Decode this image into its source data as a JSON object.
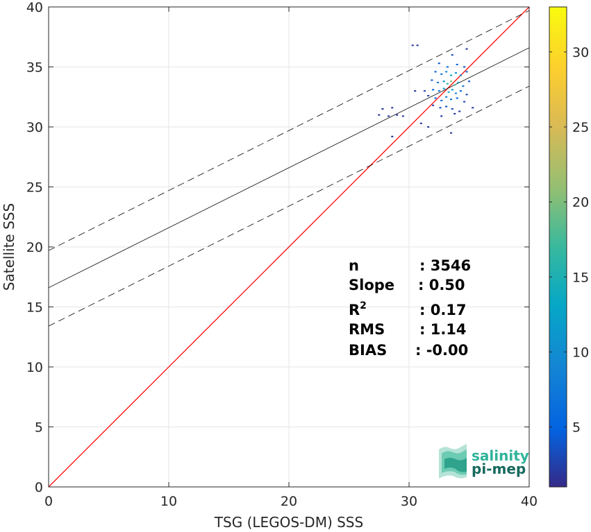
{
  "chart_data": {
    "type": "scatter",
    "xlabel": "TSG (LEGOS-DM) SSS",
    "ylabel": "Satellite SSS",
    "xlim": [
      0,
      40
    ],
    "ylim": [
      0,
      40
    ],
    "xticks": [
      0,
      10,
      20,
      30,
      40
    ],
    "yticks": [
      0,
      5,
      10,
      15,
      20,
      25,
      30,
      35,
      40
    ],
    "grid": true,
    "colorbar": {
      "lim": [
        1,
        33
      ],
      "ticks": [
        5,
        10,
        15,
        20,
        25,
        30
      ],
      "colormap": "parula"
    },
    "lines": {
      "identity": {
        "from": [
          0,
          0
        ],
        "to": [
          40,
          40
        ],
        "color": "#ff0000"
      },
      "fit": {
        "intercept": 16.6,
        "slope": 0.5,
        "color": "#000000"
      },
      "fit_upper": {
        "intercept": 19.7,
        "slope": 0.5,
        "color": "#000000",
        "style": "dashed"
      },
      "fit_lower": {
        "intercept": 13.4,
        "slope": 0.5,
        "color": "#000000",
        "style": "dashed"
      }
    },
    "density_points": [
      [
        30.3,
        36.8,
        2
      ],
      [
        30.7,
        36.8,
        2
      ],
      [
        33.6,
        36.0,
        3
      ],
      [
        34.8,
        36.5,
        2
      ],
      [
        32.5,
        35.3,
        4
      ],
      [
        33.2,
        35.0,
        6
      ],
      [
        34.0,
        35.2,
        5
      ],
      [
        34.6,
        35.0,
        4
      ],
      [
        32.2,
        34.6,
        5
      ],
      [
        32.7,
        34.4,
        7
      ],
      [
        33.1,
        34.6,
        9
      ],
      [
        33.5,
        34.3,
        14
      ],
      [
        33.9,
        34.5,
        10
      ],
      [
        34.3,
        34.3,
        8
      ],
      [
        34.8,
        34.6,
        5
      ],
      [
        31.9,
        33.9,
        4
      ],
      [
        32.4,
        33.7,
        7
      ],
      [
        32.9,
        33.8,
        11
      ],
      [
        33.2,
        33.6,
        16
      ],
      [
        33.5,
        33.8,
        20
      ],
      [
        33.8,
        33.5,
        17
      ],
      [
        34.1,
        33.7,
        12
      ],
      [
        34.5,
        33.4,
        7
      ],
      [
        35.0,
        33.8,
        4
      ],
      [
        32.0,
        33.1,
        5
      ],
      [
        32.5,
        33.0,
        8
      ],
      [
        32.9,
        33.2,
        12
      ],
      [
        33.3,
        32.9,
        14
      ],
      [
        33.6,
        33.1,
        12
      ],
      [
        33.9,
        32.8,
        9
      ],
      [
        34.3,
        33.0,
        6
      ],
      [
        34.8,
        32.7,
        3
      ],
      [
        30.5,
        33.0,
        2
      ],
      [
        31.3,
        33.0,
        3
      ],
      [
        31.6,
        32.6,
        2
      ],
      [
        32.2,
        32.4,
        5
      ],
      [
        32.7,
        32.2,
        6
      ],
      [
        33.1,
        32.5,
        8
      ],
      [
        33.5,
        32.3,
        7
      ],
      [
        34.0,
        32.4,
        5
      ],
      [
        34.6,
        32.1,
        3
      ],
      [
        32.0,
        31.8,
        3
      ],
      [
        32.6,
        31.6,
        4
      ],
      [
        33.1,
        31.7,
        4
      ],
      [
        33.6,
        31.5,
        3
      ],
      [
        35.3,
        31.6,
        2
      ],
      [
        34.2,
        31.3,
        2
      ],
      [
        27.8,
        31.5,
        2
      ],
      [
        28.6,
        31.6,
        2
      ],
      [
        27.5,
        31.0,
        2
      ],
      [
        28.3,
        30.9,
        2
      ],
      [
        29.0,
        31.0,
        2
      ],
      [
        29.5,
        30.9,
        2
      ],
      [
        32.7,
        30.9,
        2
      ],
      [
        33.8,
        31.1,
        2
      ],
      [
        31.0,
        30.3,
        2
      ],
      [
        31.6,
        30.0,
        2
      ],
      [
        33.5,
        29.5,
        2
      ],
      [
        28.6,
        29.2,
        2
      ]
    ],
    "stats": [
      {
        "label": "n",
        "value": ": 3546"
      },
      {
        "label": "Slope",
        "value": ": 0.50"
      },
      {
        "label": "R",
        "sup": "2",
        "value": ": 0.17"
      },
      {
        "label": "RMS",
        "value": ": 1.14"
      },
      {
        "label": "BIAS",
        "value": ": -0.00"
      }
    ]
  },
  "logo": {
    "line1": "salinity",
    "line2": "pi-mep",
    "color1": "#2fb39a",
    "color2": "#16695e"
  }
}
